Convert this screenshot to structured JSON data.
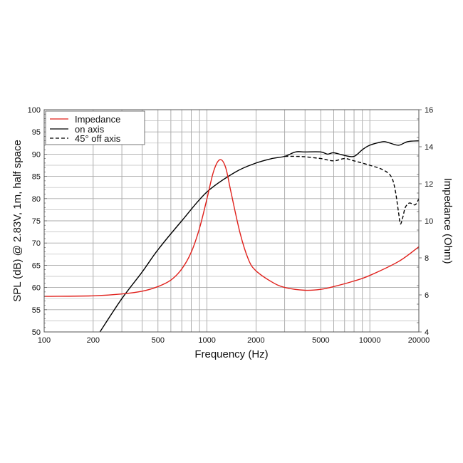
{
  "chart_data": {
    "type": "line",
    "xlabel": "Frequency (Hz)",
    "ylabel": "SPL (dB) @ 2.83V, 1m, half space",
    "y2label": "Impedance (Ohm)",
    "xscale": "log",
    "xlim": [
      100,
      20000
    ],
    "ylim": [
      50,
      100
    ],
    "y2lim": [
      4,
      16
    ],
    "grid": true,
    "legend_placement": "top-left",
    "x_ticks": [
      100,
      200,
      500,
      1000,
      2000,
      5000,
      10000,
      20000
    ],
    "x_tick_labels": [
      "100",
      "200",
      "500",
      "1000",
      "2000",
      "5000",
      "10000",
      "20000"
    ],
    "y_ticks": [
      "50",
      "55",
      "60",
      "65",
      "70",
      "75",
      "80",
      "85",
      "90",
      "95",
      "100"
    ],
    "y2_ticks": [
      "4",
      "6",
      "8",
      "10",
      "12",
      "14",
      "16"
    ],
    "series": [
      {
        "name": "Impedance",
        "axis": "right",
        "color": "#e0201b",
        "style": "solid",
        "x": [
          100,
          200,
          300,
          400,
          500,
          600,
          700,
          800,
          900,
          1000,
          1100,
          1200,
          1300,
          1400,
          1600,
          1800,
          2000,
          2500,
          3000,
          4000,
          5000,
          6000,
          8000,
          10000,
          15000,
          20000
        ],
        "y": [
          5.92,
          5.95,
          6.05,
          6.2,
          6.45,
          6.8,
          7.4,
          8.3,
          9.6,
          11.2,
          12.7,
          13.3,
          12.9,
          11.6,
          9.3,
          7.9,
          7.3,
          6.7,
          6.4,
          6.25,
          6.3,
          6.45,
          6.75,
          7.05,
          7.8,
          8.6
        ]
      },
      {
        "name": "on axis",
        "axis": "left",
        "color": "#000000",
        "style": "solid",
        "x": [
          220,
          300,
          400,
          500,
          700,
          1000,
          1500,
          2000,
          2500,
          3000,
          3500,
          4000,
          5000,
          5500,
          6000,
          7000,
          8000,
          9000,
          10000,
          12000,
          13000,
          15000,
          17000,
          20000
        ],
        "y": [
          50,
          57.5,
          63.5,
          68.5,
          75,
          81.5,
          86,
          88,
          89,
          89.5,
          90.5,
          90.5,
          90.5,
          90.0,
          90.3,
          89.7,
          89.5,
          91.0,
          92.0,
          92.8,
          92.6,
          92.0,
          92.8,
          93.0
        ]
      },
      {
        "name": "45° off axis",
        "axis": "left",
        "color": "#000000",
        "style": "dashed",
        "x": [
          3000,
          3500,
          4000,
          5000,
          6000,
          7000,
          8000,
          10000,
          12000,
          13500,
          14300,
          15000,
          15400,
          16000,
          16500,
          17500,
          19000,
          20000
        ],
        "y": [
          89.5,
          89.5,
          89.4,
          89.0,
          88.5,
          89.0,
          88.5,
          87.5,
          86.5,
          85,
          82,
          77,
          74.3,
          76,
          78,
          79,
          78.6,
          80
        ]
      }
    ]
  }
}
